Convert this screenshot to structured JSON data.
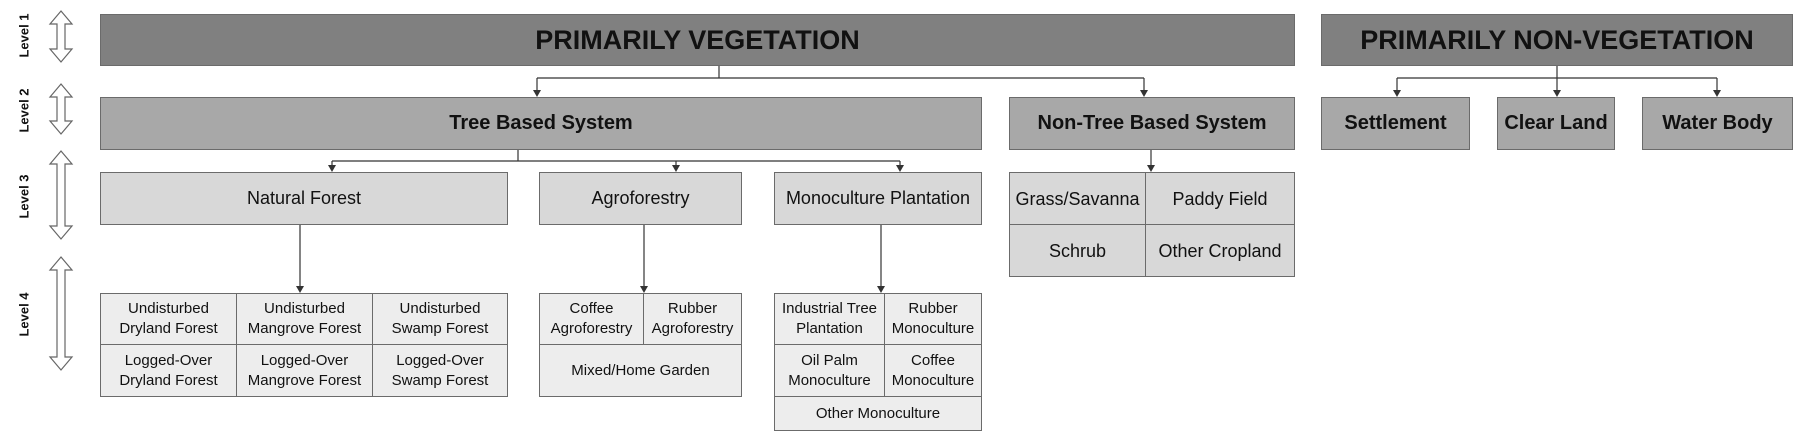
{
  "levels": [
    "Level 1",
    "Level 2",
    "Level 3",
    "Level 4"
  ],
  "level1": {
    "vegetation": "PRIMARILY VEGETATION",
    "non_vegetation": "PRIMARILY NON-VEGETATION"
  },
  "level2": {
    "tree_based": "Tree Based System",
    "non_tree_based": "Non-Tree Based System",
    "settlement": "Settlement",
    "clear_land": "Clear Land",
    "water_body": "Water Body"
  },
  "level3": {
    "natural_forest": "Natural Forest",
    "agroforestry": "Agroforestry",
    "monoculture": "Monoculture Plantation",
    "non_tree_grid": [
      "Grass/Savanna",
      "Paddy Field",
      "Schrub",
      "Other Cropland"
    ]
  },
  "level4": {
    "natural_forest": [
      "Undisturbed\nDryland Forest",
      "Undisturbed\nMangrove Forest",
      "Undisturbed\nSwamp Forest",
      "Logged-Over\nDryland Forest",
      "Logged-Over\nMangrove Forest",
      "Logged-Over\nSwamp Forest"
    ],
    "agroforestry": [
      "Coffee\nAgroforestry",
      "Rubber\nAgroforestry",
      "Mixed/Home Garden"
    ],
    "monoculture": [
      "Industrial Tree\nPlantation",
      "Rubber\nMonoculture",
      "Oil Palm\nMonoculture",
      "Coffee\nMonoculture",
      "Other Monoculture"
    ]
  },
  "colors": {
    "level1_fill": "#808080",
    "level2_fill": "#a8a8a8",
    "level3_fill": "#d8d8d8",
    "level4_fill": "#ededed",
    "border": "#6b6b6b"
  }
}
